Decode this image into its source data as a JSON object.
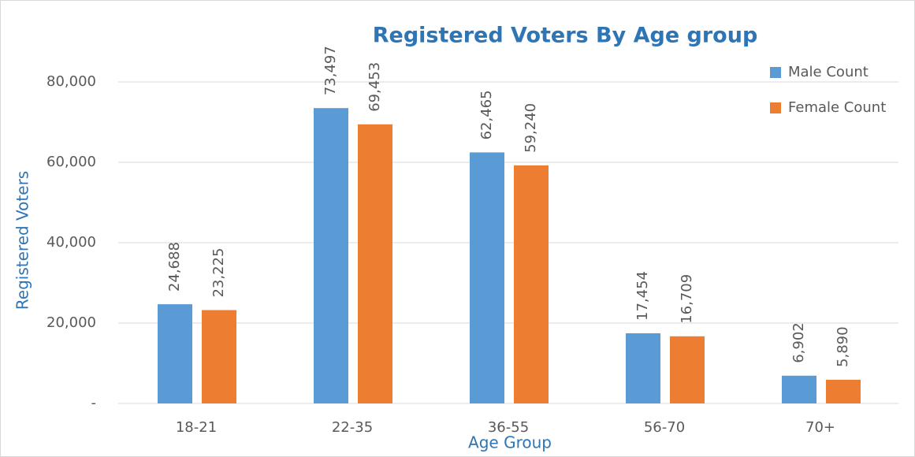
{
  "chart_data": {
    "type": "bar",
    "title": "Registered Voters By Age group",
    "x_label": "Age Group",
    "y_label": "Registered Voters",
    "categories": [
      "18-21",
      "22-35",
      "36-55",
      "56-70",
      "70+"
    ],
    "series": [
      {
        "name": "Male Count",
        "color": "#5b9bd5",
        "values": [
          24688,
          73497,
          62465,
          17454,
          6902
        ],
        "value_labels": [
          "24,688",
          "73,497",
          "62,465",
          "17,454",
          "6,902"
        ]
      },
      {
        "name": "Female Count",
        "color": "#ed7d31",
        "values": [
          23225,
          69453,
          59240,
          16709,
          5890
        ],
        "value_labels": [
          "23,225",
          "69,453",
          "59,240",
          "16,709",
          "5,890"
        ]
      }
    ],
    "ylim": [
      0,
      80000
    ],
    "yticks": [
      {
        "value": 0,
        "label": "-"
      },
      {
        "value": 20000,
        "label": "20,000"
      },
      {
        "value": 40000,
        "label": "40,000"
      },
      {
        "value": 60000,
        "label": "60,000"
      },
      {
        "value": 80000,
        "label": "80,000"
      }
    ],
    "grid": true,
    "legend": "top-right"
  }
}
